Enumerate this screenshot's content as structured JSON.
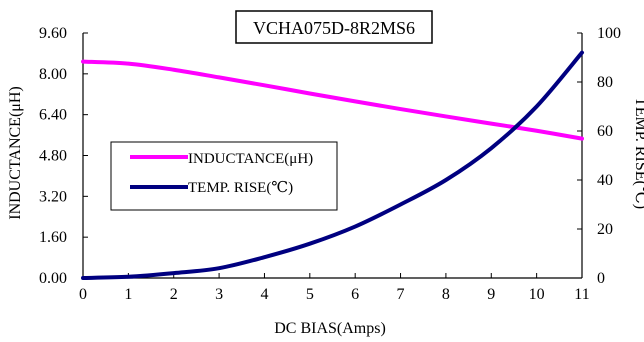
{
  "chart_data": {
    "type": "line",
    "title": "VCHA075D-8R2MS6",
    "xlabel": "DC BIAS(Amps)",
    "ylabel_left": "INDUCTANCE(μH)",
    "ylabel_right": "TEMP. RISE(℃)",
    "xlim": [
      0,
      11
    ],
    "ylim_left": [
      0,
      9.6
    ],
    "ylim_right": [
      0,
      100
    ],
    "x_ticks": [
      "0",
      "1",
      "2",
      "3",
      "4",
      "5",
      "6",
      "7",
      "8",
      "9",
      "10",
      "11"
    ],
    "y_left_ticks": [
      "0.00",
      "1.60",
      "3.20",
      "4.80",
      "6.40",
      "8.00",
      "9.60"
    ],
    "y_right_ticks": [
      "0",
      "20",
      "40",
      "60",
      "80",
      "100"
    ],
    "grid": false,
    "legend_position": "center-left",
    "series": [
      {
        "name": "INDUCTANCE(μH)",
        "axis": "left",
        "color": "#ff00ff",
        "x": [
          0,
          1,
          2,
          3,
          4,
          5,
          6,
          7,
          8,
          9,
          10,
          11
        ],
        "values": [
          8.48,
          8.4,
          8.16,
          7.86,
          7.55,
          7.23,
          6.92,
          6.62,
          6.33,
          6.05,
          5.77,
          5.46
        ]
      },
      {
        "name": "TEMP. RISE(℃)",
        "axis": "right",
        "color": "#000080",
        "x": [
          0,
          1,
          2,
          3,
          4,
          5,
          6,
          7,
          8,
          9,
          10,
          11
        ],
        "values": [
          0,
          0.5,
          2,
          4,
          8.5,
          14,
          21,
          30,
          40,
          53,
          70,
          92
        ]
      }
    ]
  }
}
